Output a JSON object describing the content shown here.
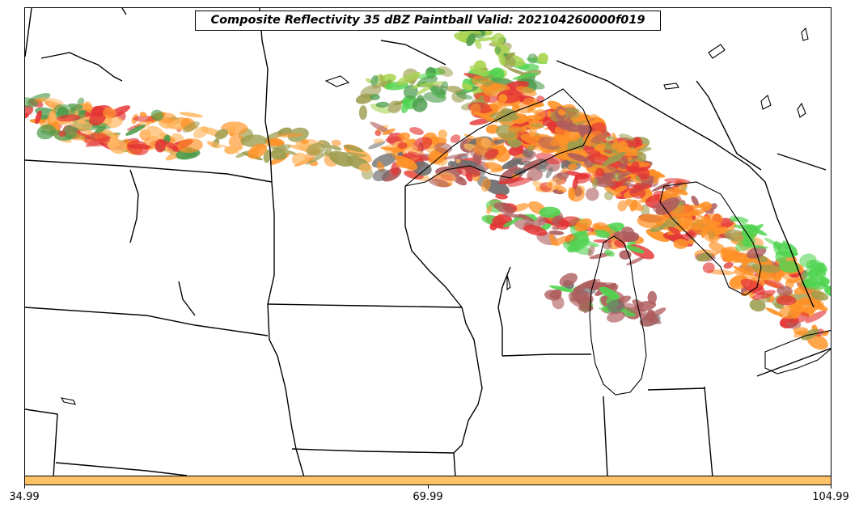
{
  "title": "Composite Reflectivity 35 dBZ Paintball Valid: 202104260000f019",
  "colorbar": {
    "color": "#ffc266",
    "ticks": [
      "34.99",
      "69.99",
      "104.99"
    ]
  },
  "member_colors": [
    "#e01010",
    "#ff7f00",
    "#ffaa44",
    "#a0522d",
    "#2e8b2e",
    "#32cd32",
    "#8b8b2e",
    "#9acd32",
    "#a04040",
    "#555555"
  ],
  "boundaries": "US state borders and Great Lakes coastlines"
}
